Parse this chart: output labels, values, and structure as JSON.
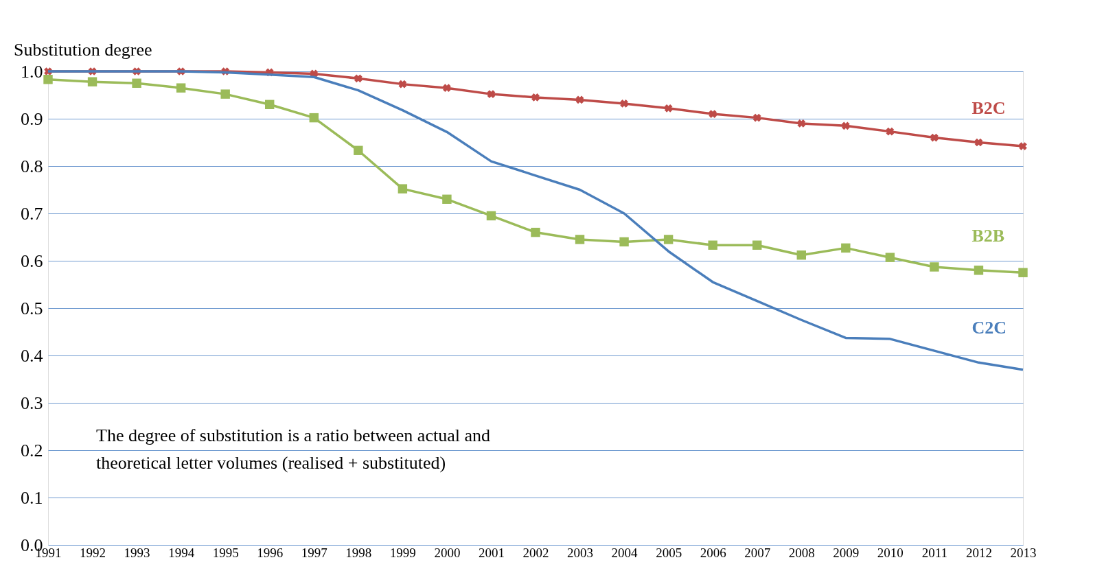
{
  "chart_data": {
    "type": "line",
    "ylabel": "Substitution degree",
    "categories": [
      "1991",
      "1992",
      "1993",
      "1994",
      "1995",
      "1996",
      "1997",
      "1998",
      "1999",
      "2000",
      "2001",
      "2002",
      "2003",
      "2004",
      "2005",
      "2006",
      "2007",
      "2008",
      "2009",
      "2010",
      "2011",
      "2012",
      "2013"
    ],
    "series": [
      {
        "name": "B2C",
        "color": "#be4b48",
        "marker": "cross",
        "values": [
          1.0,
          1.0,
          1.0,
          1.0,
          1.0,
          0.998,
          0.995,
          0.985,
          0.973,
          0.965,
          0.952,
          0.945,
          0.94,
          0.932,
          0.922,
          0.91,
          0.902,
          0.89,
          0.885,
          0.873,
          0.86,
          0.85,
          0.842
        ]
      },
      {
        "name": "B2B",
        "color": "#9bbb59",
        "marker": "square",
        "values": [
          0.983,
          0.978,
          0.975,
          0.965,
          0.952,
          0.93,
          0.902,
          0.833,
          0.752,
          0.73,
          0.695,
          0.66,
          0.645,
          0.64,
          0.645,
          0.633,
          0.633,
          0.612,
          0.627,
          0.607,
          0.587,
          0.58,
          0.575
        ]
      },
      {
        "name": "C2C",
        "color": "#4a7ebb",
        "marker": "none",
        "values": [
          1.0,
          1.0,
          1.0,
          1.0,
          0.998,
          0.993,
          0.988,
          0.96,
          0.918,
          0.872,
          0.81,
          0.78,
          0.75,
          0.7,
          0.62,
          0.555,
          0.515,
          0.475,
          0.437,
          0.435,
          0.41,
          0.385,
          0.37
        ]
      }
    ],
    "ylim": [
      0,
      1.0
    ],
    "yticks": [
      {
        "value": 0,
        "label": "0.0"
      },
      {
        "value": 0.1,
        "label": "0.1"
      },
      {
        "value": 0.2,
        "label": "0.2"
      },
      {
        "value": 0.3,
        "label": "0.3"
      },
      {
        "value": 0.4,
        "label": "0.4"
      },
      {
        "value": 0.5,
        "label": "0.5"
      },
      {
        "value": 0.6,
        "label": "0.6"
      },
      {
        "value": 0.7,
        "label": "0.7"
      },
      {
        "value": 0.8,
        "label": "0.8"
      },
      {
        "value": 0.9,
        "label": "0.9"
      },
      {
        "value": 1.0,
        "label": "1.0"
      }
    ],
    "grid": "y",
    "legend": false,
    "annotations": [
      "The degree of substitution is a ratio between actual and\ntheoretical letter volumes (realised + substituted)"
    ]
  }
}
